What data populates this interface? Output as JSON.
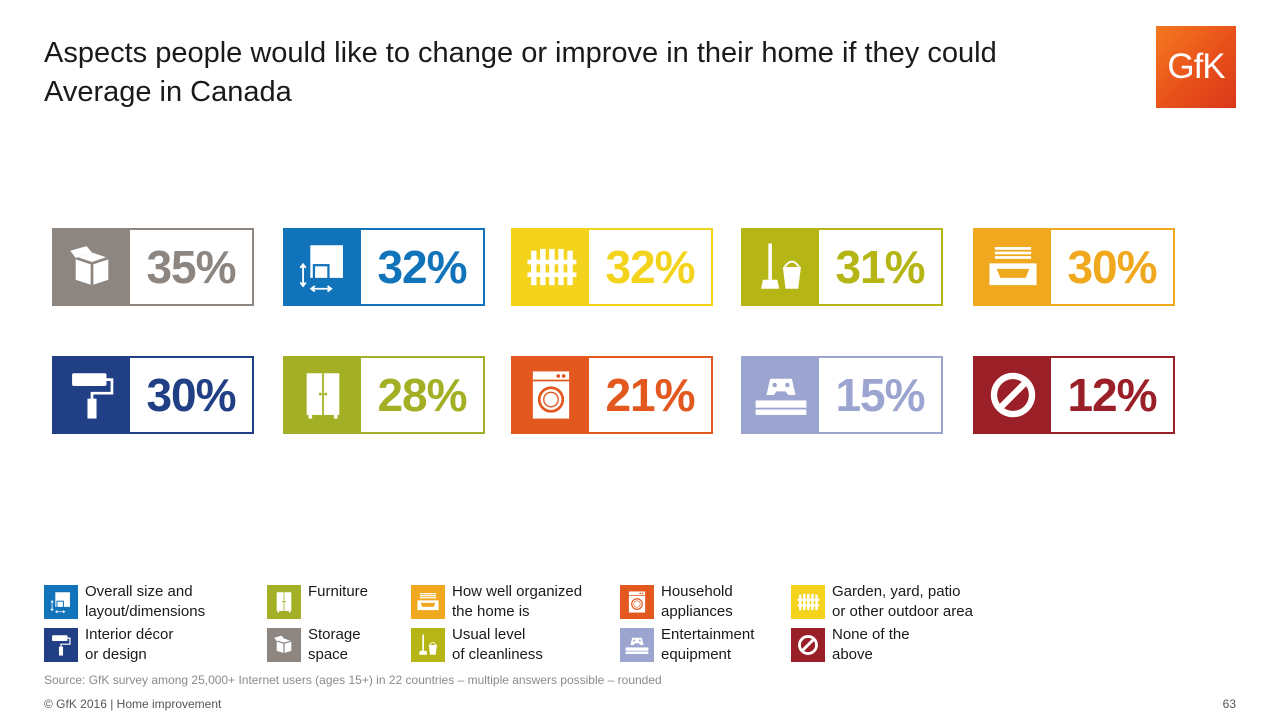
{
  "title": {
    "line1": "Aspects people would like to change or improve in their home if they could",
    "line2": "Average in Canada"
  },
  "logo": {
    "text": "GfK"
  },
  "tiles": [
    {
      "key": "storage",
      "value": "35%",
      "color": "#8d8580",
      "icon": "box-icon"
    },
    {
      "key": "size",
      "value": "32%",
      "color": "#1173b9",
      "icon": "floorplan-icon"
    },
    {
      "key": "garden",
      "value": "32%",
      "color": "#f4d31c",
      "icon": "fence-icon"
    },
    {
      "key": "cleanliness",
      "value": "31%",
      "color": "#b5b515",
      "icon": "mop-bucket-icon"
    },
    {
      "key": "organized",
      "value": "30%",
      "color": "#f0a81e",
      "icon": "drawer-icon"
    },
    {
      "key": "decor",
      "value": "30%",
      "color": "#213f85",
      "icon": "paint-roller-icon"
    },
    {
      "key": "furniture",
      "value": "28%",
      "color": "#a3b026",
      "icon": "wardrobe-icon"
    },
    {
      "key": "appliances",
      "value": "21%",
      "color": "#e2581f",
      "icon": "washing-machine-icon"
    },
    {
      "key": "entertainment",
      "value": "15%",
      "color": "#9ca5cf",
      "icon": "game-console-icon"
    },
    {
      "key": "none",
      "value": "12%",
      "color": "#9a1f26",
      "icon": "prohibited-icon"
    }
  ],
  "legend": [
    {
      "key": "size",
      "label": "Overall size and\nlayout/dimensions",
      "color": "#1173b9",
      "icon": "floorplan-icon"
    },
    {
      "key": "furniture",
      "label": "Furniture",
      "color": "#a3b026",
      "icon": "wardrobe-icon"
    },
    {
      "key": "organized",
      "label": "How well organized\nthe home is",
      "color": "#f0a81e",
      "icon": "drawer-icon"
    },
    {
      "key": "appliances",
      "label": "Household\nappliances",
      "color": "#e2581f",
      "icon": "washing-machine-icon"
    },
    {
      "key": "garden",
      "label": "Garden, yard, patio\nor other outdoor area",
      "color": "#f4d31c",
      "icon": "fence-icon"
    },
    {
      "key": "decor",
      "label": "Interior décor\nor design",
      "color": "#213f85",
      "icon": "paint-roller-icon"
    },
    {
      "key": "storage",
      "label": "Storage\nspace",
      "color": "#8d8580",
      "icon": "box-icon"
    },
    {
      "key": "cleanliness",
      "label": "Usual level\nof cleanliness",
      "color": "#b5b515",
      "icon": "mop-bucket-icon"
    },
    {
      "key": "entertainment",
      "label": "Entertainment\nequipment",
      "color": "#9ca5cf",
      "icon": "game-console-icon"
    },
    {
      "key": "none",
      "label": "None of the\nabove",
      "color": "#9a1f26",
      "icon": "prohibited-icon"
    }
  ],
  "source": "Source: GfK survey among 25,000+ Internet users (ages 15+) in 22 countries – multiple answers possible – rounded",
  "footer": "© GfK 2016 | Home improvement",
  "page_number": "63"
}
